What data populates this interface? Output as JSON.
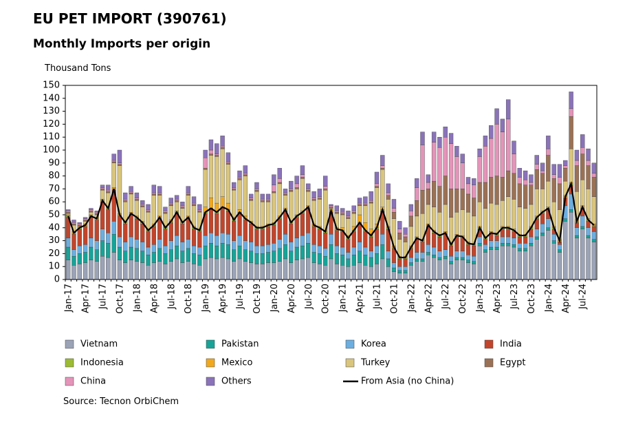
{
  "chart_data": {
    "type": "stacked_bar",
    "title": "EU PET IMPORT (390761)",
    "subtitle": "Monthly Imports per origin",
    "y_axis_label": "Thousand  Tons",
    "source": "Source: Tecnon OrbiChem",
    "categories": [
      "Jan-17",
      null,
      null,
      "Apr-17",
      null,
      null,
      "Jul-17",
      null,
      null,
      "Oct-17",
      null,
      null,
      "Jan-18",
      null,
      null,
      "Apr-18",
      null,
      null,
      "Jul-18",
      null,
      null,
      "Oct-18",
      null,
      null,
      "Jan-19",
      null,
      null,
      "Apr-19",
      null,
      null,
      "Jul-19",
      null,
      null,
      "Oct-19",
      null,
      null,
      "Jan-20",
      null,
      null,
      "Apr-20",
      null,
      null,
      "Jul-20",
      null,
      null,
      "Oct-20",
      null,
      null,
      "Jan-21",
      null,
      null,
      "Apr-21",
      null,
      null,
      "Jul-21",
      null,
      null,
      "Oct-21",
      null,
      null,
      "Jan-22",
      null,
      null,
      "Apr-22",
      null,
      null,
      "Jul-22",
      null,
      null,
      "Oct-22",
      null,
      null,
      "Jan-23",
      null,
      null,
      "Apr-23",
      null,
      null,
      "Jul-23",
      null,
      null,
      "Oct-23",
      null,
      null,
      "Jan-24",
      null,
      null,
      "Apr-24",
      null,
      null,
      "Jul-24",
      null,
      null
    ],
    "ylim": [
      0,
      150
    ],
    "yticks": [
      0,
      10,
      20,
      30,
      40,
      50,
      60,
      70,
      80,
      90,
      100,
      110,
      120,
      130,
      140,
      150
    ],
    "grid": false,
    "series": [
      {
        "name": "Vietnam",
        "color": "#9ba3b7",
        "values": [
          15,
          11,
          12,
          13,
          15,
          14,
          18,
          17,
          21,
          15,
          13,
          15,
          14,
          13,
          11,
          13,
          14,
          12,
          14,
          16,
          13,
          14,
          12,
          11,
          16,
          17,
          16,
          17,
          16,
          14,
          16,
          14,
          13,
          12,
          12,
          13,
          13,
          14,
          16,
          13,
          15,
          16,
          17,
          13,
          12,
          11,
          16,
          12,
          11,
          10,
          11,
          13,
          11,
          10,
          12,
          16,
          10,
          6,
          5,
          5,
          11,
          14,
          14,
          19,
          17,
          15,
          16,
          12,
          15,
          15,
          13,
          12,
          26,
          21,
          23,
          23,
          26,
          26,
          25,
          22,
          22,
          26,
          31,
          34,
          38,
          28,
          21,
          45,
          52,
          32,
          39,
          32,
          29
        ]
      },
      {
        "name": "Pakistan",
        "color": "#17a398",
        "values": [
          10,
          7,
          8,
          8,
          10,
          9,
          12,
          11,
          14,
          10,
          9,
          10,
          10,
          9,
          8,
          8,
          10,
          8,
          9,
          10,
          9,
          10,
          8,
          8,
          10,
          11,
          10,
          11,
          11,
          9,
          10,
          9,
          9,
          8,
          8,
          8,
          9,
          10,
          11,
          9,
          10,
          10,
          11,
          8,
          8,
          7,
          11,
          8,
          8,
          6,
          8,
          9,
          8,
          7,
          8,
          11,
          6,
          3,
          2,
          2,
          2,
          2,
          2,
          2,
          2,
          2,
          2,
          2,
          2,
          2,
          2,
          2,
          2,
          2,
          2,
          2,
          2,
          2,
          2,
          2,
          2,
          2,
          2,
          2,
          2,
          2,
          2,
          2,
          2,
          2,
          2,
          2,
          2
        ]
      },
      {
        "name": "Korea",
        "color": "#6caee0",
        "values": [
          7,
          5,
          6,
          6,
          7,
          7,
          9,
          8,
          10,
          8,
          7,
          8,
          7,
          7,
          6,
          6,
          7,
          6,
          7,
          8,
          7,
          7,
          6,
          6,
          8,
          8,
          8,
          8,
          8,
          7,
          8,
          7,
          7,
          6,
          6,
          6,
          6,
          7,
          8,
          7,
          7,
          8,
          8,
          6,
          6,
          6,
          8,
          6,
          6,
          5,
          6,
          7,
          6,
          5,
          6,
          8,
          6,
          4,
          3,
          3,
          4,
          5,
          5,
          6,
          6,
          5,
          5,
          4,
          5,
          5,
          4,
          4,
          5,
          4,
          5,
          5,
          5,
          5,
          5,
          4,
          4,
          5,
          6,
          7,
          7,
          5,
          4,
          10,
          12,
          6,
          8,
          6,
          6
        ]
      },
      {
        "name": "India",
        "color": "#c2452b",
        "values": [
          16,
          12,
          13,
          14,
          16,
          16,
          21,
          18,
          24,
          16,
          14,
          17,
          16,
          14,
          12,
          14,
          16,
          13,
          14,
          17,
          14,
          16,
          13,
          12,
          17,
          18,
          17,
          19,
          18,
          15,
          17,
          16,
          14,
          13,
          13,
          14,
          14,
          16,
          18,
          14,
          16,
          17,
          19,
          14,
          13,
          12,
          17,
          12,
          12,
          10,
          12,
          14,
          12,
          11,
          13,
          18,
          17,
          11,
          6,
          6,
          7,
          10,
          8,
          14,
          11,
          11,
          12,
          8,
          11,
          10,
          8,
          8,
          6,
          4,
          5,
          4,
          6,
          6,
          5,
          5,
          5,
          6,
          8,
          8,
          7,
          4,
          2,
          6,
          7,
          4,
          6,
          5,
          4
        ]
      },
      {
        "name": "Indonesia",
        "color": "#9cbb33",
        "values": [
          1,
          1,
          1,
          1,
          1,
          1,
          1,
          1,
          1,
          1,
          1,
          1,
          1,
          1,
          1,
          1,
          1,
          1,
          1,
          1,
          1,
          1,
          1,
          1,
          1,
          1,
          1,
          1,
          1,
          1,
          1,
          1,
          1,
          1,
          1,
          1,
          1,
          1,
          1,
          1,
          1,
          1,
          1,
          1,
          1,
          1,
          1,
          1,
          1,
          1,
          1,
          1,
          1,
          1,
          1,
          1,
          1,
          1,
          1,
          1,
          1,
          1,
          1,
          1,
          1,
          1,
          1,
          1,
          1,
          1,
          1,
          1,
          1,
          1,
          1,
          1,
          1,
          1,
          1,
          1,
          1,
          1,
          1,
          1,
          1,
          1,
          1,
          1,
          1,
          1,
          1,
          1,
          1
        ]
      },
      {
        "name": "Mexico",
        "color": "#f2a81b",
        "values": [
          1,
          1,
          1,
          1,
          1,
          1,
          1,
          1,
          1,
          1,
          1,
          1,
          1,
          1,
          1,
          1,
          1,
          1,
          1,
          1,
          1,
          1,
          1,
          1,
          4,
          8,
          7,
          8,
          5,
          2,
          2,
          2,
          1,
          1,
          1,
          1,
          1,
          1,
          1,
          1,
          1,
          1,
          1,
          1,
          1,
          1,
          1,
          1,
          2,
          2,
          3,
          6,
          6,
          5,
          3,
          2,
          1,
          1,
          1,
          1,
          1,
          1,
          1,
          1,
          1,
          1,
          1,
          1,
          1,
          1,
          1,
          1,
          1,
          1,
          1,
          1,
          1,
          1,
          1,
          1,
          1,
          1,
          1,
          1,
          1,
          1,
          1,
          1,
          1,
          1,
          1,
          1,
          1
        ]
      },
      {
        "name": "Turkey",
        "color": "#d9c57c",
        "values": [
          1,
          5,
          0,
          2,
          2,
          2,
          7,
          11,
          19,
          37,
          15,
          14,
          12,
          11,
          13,
          22,
          16,
          10,
          11,
          7,
          10,
          16,
          16,
          13,
          29,
          33,
          36,
          37,
          30,
          21,
          23,
          31,
          16,
          27,
          19,
          17,
          23,
          25,
          10,
          23,
          20,
          25,
          11,
          18,
          21,
          31,
          1,
          11,
          10,
          13,
          10,
          7,
          13,
          20,
          28,
          29,
          21,
          21,
          13,
          11,
          15,
          16,
          20,
          15,
          18,
          17,
          21,
          20,
          17,
          20,
          23,
          21,
          19,
          22,
          22,
          22,
          20,
          23,
          23,
          21,
          20,
          17,
          21,
          17,
          20,
          19,
          23,
          11,
          26,
          22,
          20,
          23,
          21
        ]
      },
      {
        "name": "Egypt",
        "color": "#9b7155",
        "values": [
          1,
          1,
          1,
          1,
          1,
          1,
          1,
          1,
          1,
          1,
          1,
          1,
          1,
          1,
          1,
          1,
          1,
          1,
          1,
          1,
          1,
          1,
          1,
          1,
          1,
          1,
          1,
          1,
          1,
          1,
          1,
          1,
          1,
          1,
          1,
          1,
          1,
          1,
          1,
          1,
          1,
          1,
          1,
          1,
          1,
          1,
          1,
          1,
          1,
          1,
          1,
          1,
          1,
          1,
          1,
          1,
          3,
          5,
          5,
          4,
          8,
          12,
          18,
          12,
          20,
          20,
          22,
          22,
          18,
          16,
          14,
          14,
          15,
          20,
          20,
          22,
          18,
          20,
          20,
          18,
          18,
          15,
          15,
          12,
          20,
          18,
          20,
          10,
          25,
          20,
          20,
          18,
          15
        ]
      },
      {
        "name": "China",
        "color": "#e494b9",
        "values": [
          1,
          1,
          1,
          1,
          1,
          1,
          1,
          1,
          1,
          1,
          1,
          1,
          1,
          1,
          1,
          1,
          1,
          1,
          1,
          1,
          1,
          1,
          1,
          1,
          8,
          3,
          1,
          1,
          1,
          1,
          1,
          1,
          1,
          1,
          1,
          1,
          5,
          3,
          1,
          1,
          3,
          2,
          1,
          1,
          1,
          2,
          1,
          1,
          1,
          1,
          1,
          1,
          1,
          1,
          2,
          2,
          2,
          3,
          3,
          2,
          4,
          10,
          35,
          5,
          30,
          30,
          30,
          35,
          25,
          20,
          8,
          10,
          20,
          28,
          30,
          40,
          35,
          40,
          15,
          5,
          4,
          2,
          4,
          2,
          5,
          3,
          5,
          2,
          6,
          4,
          5,
          4,
          3
        ]
      },
      {
        "name": "Others",
        "color": "#8a73b9",
        "values": [
          1,
          2,
          1,
          1,
          1,
          1,
          2,
          4,
          5,
          10,
          5,
          4,
          4,
          3,
          4,
          6,
          5,
          3,
          4,
          3,
          3,
          5,
          5,
          4,
          6,
          8,
          8,
          8,
          7,
          4,
          5,
          6,
          3,
          5,
          4,
          4,
          8,
          8,
          3,
          6,
          6,
          7,
          4,
          5,
          6,
          8,
          1,
          4,
          3,
          4,
          4,
          4,
          5,
          7,
          9,
          8,
          7,
          7,
          6,
          5,
          5,
          7,
          10,
          6,
          8,
          8,
          8,
          8,
          8,
          7,
          5,
          5,
          6,
          8,
          10,
          12,
          10,
          15,
          10,
          7,
          7,
          6,
          7,
          6,
          10,
          8,
          10,
          4,
          13,
          8,
          10,
          9,
          8
        ]
      }
    ],
    "line_series": {
      "name": "From Asia (no China)",
      "color": "#000000",
      "values": [
        49,
        36,
        40,
        42,
        49,
        47,
        61,
        55,
        70,
        50,
        44,
        51,
        48,
        44,
        38,
        42,
        48,
        40,
        45,
        52,
        44,
        48,
        40,
        38,
        52,
        55,
        52,
        56,
        54,
        46,
        52,
        47,
        44,
        40,
        40,
        42,
        43,
        48,
        54,
        44,
        49,
        52,
        56,
        42,
        40,
        37,
        53,
        39,
        38,
        32,
        38,
        44,
        38,
        34,
        40,
        54,
        40,
        25,
        17,
        17,
        25,
        32,
        30,
        42,
        37,
        34,
        36,
        27,
        34,
        33,
        28,
        27,
        40,
        32,
        36,
        35,
        40,
        40,
        38,
        34,
        34,
        40,
        48,
        52,
        55,
        40,
        30,
        64,
        74,
        45,
        56,
        46,
        42
      ]
    }
  }
}
